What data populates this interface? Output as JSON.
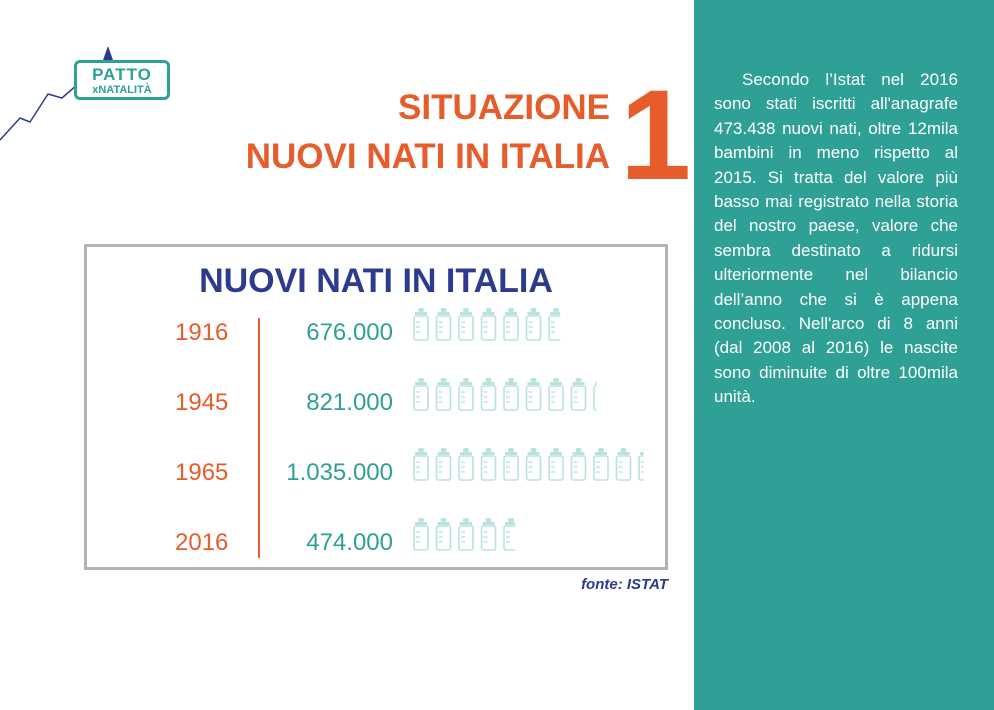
{
  "logo": {
    "line1": "PATTO",
    "line2": "xNATALITÀ"
  },
  "heading": {
    "line1": "SITUAZIONE",
    "line2": "NUOVI NATI IN ITALIA",
    "number": "1."
  },
  "source": "fonte: ISTAT",
  "description": "Secondo l’Istat nel 2016 sono stati iscritti all'anagrafe 473.438 nuovi nati, oltre 12mila bambini in meno rispetto al 2015. Si tratta del valore più basso mai registrato nella storia del nostro paese, valore che sembra destinato a ridursi ulteriormente nel bilancio dell’anno che si è appena concluso. Nell'arco di 8 anni (dal 2008 al 2016) le nascite sono diminuite di oltre 100mila unità.",
  "colors": {
    "accent": "#e65c2a",
    "teal": "#2fa095",
    "navy": "#2d3b8f",
    "bottle": "#b9e3df"
  },
  "icons": {
    "bottle": "baby-bottle-icon"
  },
  "chart_data": {
    "type": "bar",
    "title": "NUOVI NATI IN ITALIA",
    "units_per_icon": 100000,
    "categories": [
      "1916",
      "1945",
      "1965",
      "2016"
    ],
    "values": [
      676000,
      821000,
      1035000,
      474000
    ],
    "value_labels": [
      "676.000",
      "821.000",
      "1.035.000",
      "474.000"
    ]
  }
}
